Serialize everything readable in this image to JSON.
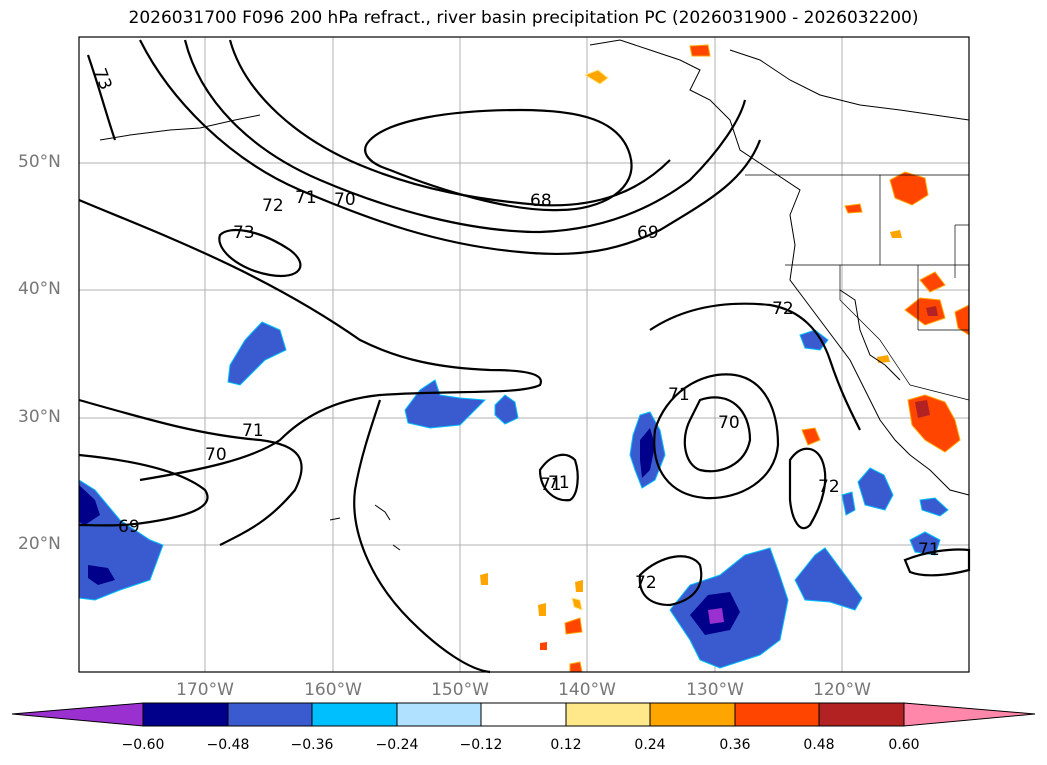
{
  "title": "2026031700 F096 200 hPa refract., river basin precipitation PC (2026031900 - 2026032200)",
  "lat_labels": [
    "50°N",
    "40°N",
    "30°N",
    "20°N"
  ],
  "lon_labels": [
    "170°W",
    "160°W",
    "150°W",
    "140°W",
    "130°W",
    "120°W"
  ],
  "colorbar": {
    "ticks": [
      "−0.60",
      "−0.48",
      "−0.36",
      "−0.24",
      "−0.12",
      "0.12",
      "0.24",
      "0.36",
      "0.48",
      "0.60"
    ],
    "colors": [
      "#9b30d0",
      "#00008b",
      "#3a5bd0",
      "#00bfff",
      "#b0e2ff",
      "#ffffff",
      "#ffe88a",
      "#ffa500",
      "#ff4500",
      "#b22222",
      "#ff88aa"
    ]
  },
  "contour_labels": [
    "73",
    "73",
    "72",
    "71",
    "70",
    "68",
    "69",
    "72",
    "71",
    "70",
    "69",
    "71",
    "71",
    "70",
    "71",
    "72",
    "72",
    "71"
  ],
  "icons": [
    "coastline",
    "state-borders",
    "precip-shading"
  ]
}
